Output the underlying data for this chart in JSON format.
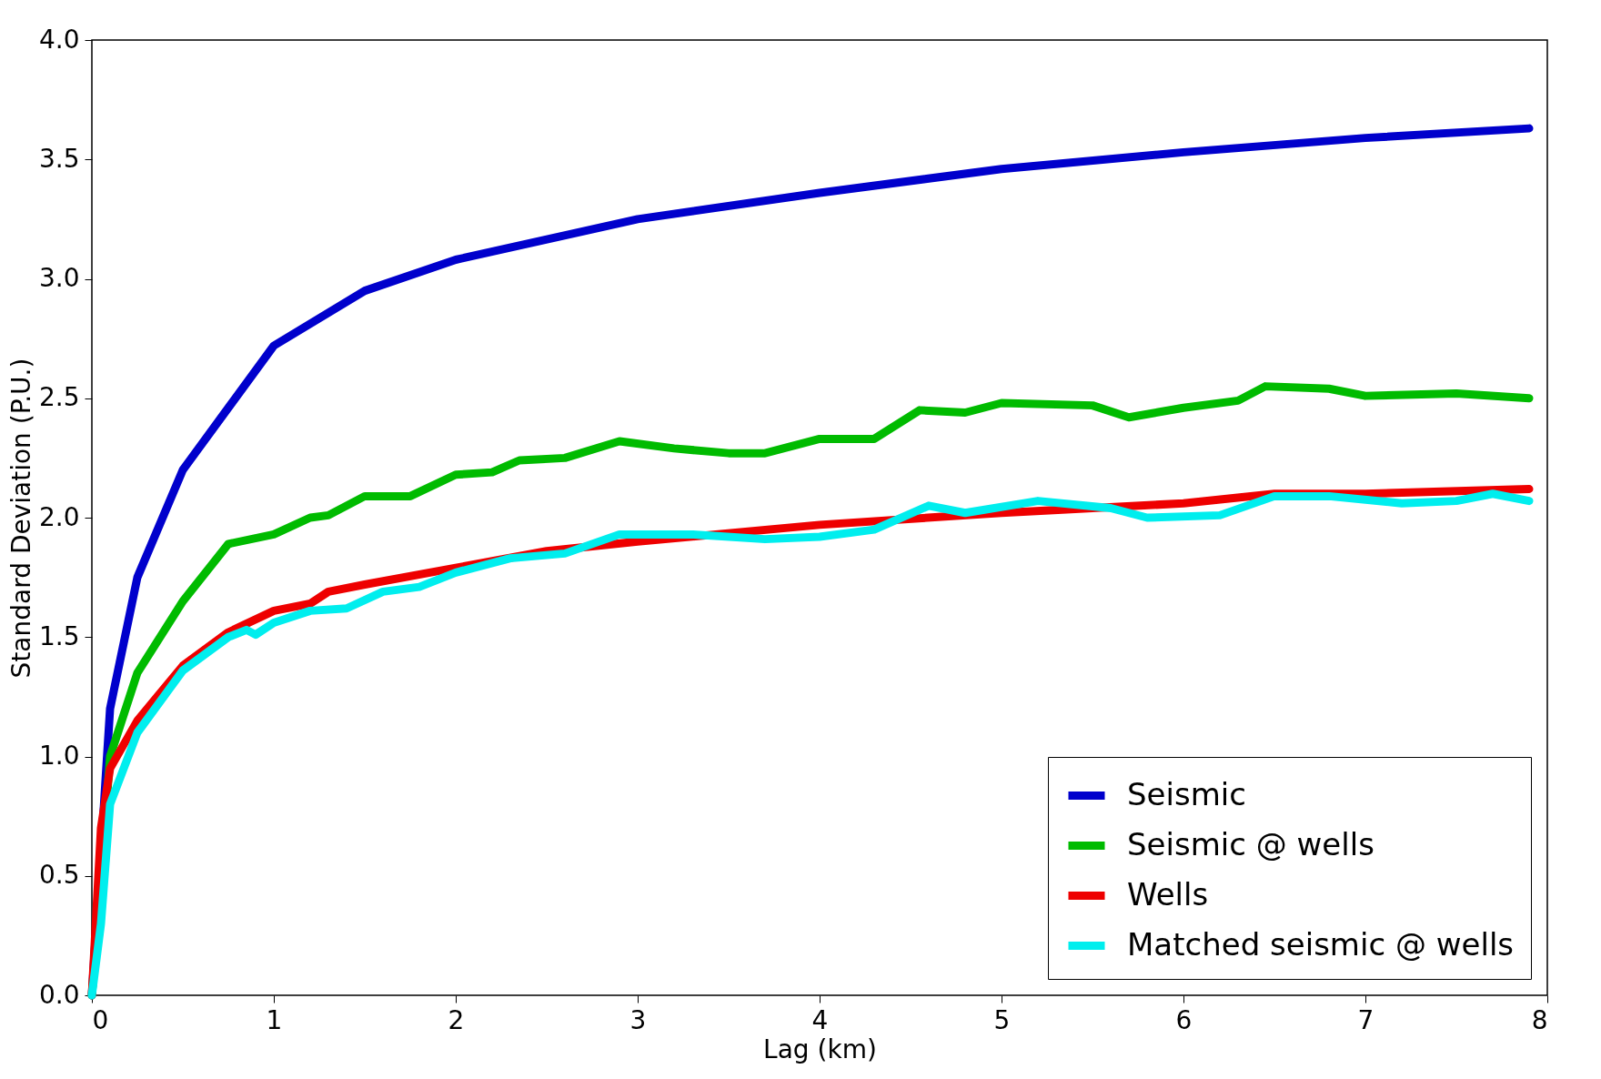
{
  "chart_data": {
    "type": "line",
    "xlabel": "Lag (km)",
    "ylabel": "Standard Deviation (P.U.)",
    "xlim": [
      0,
      8
    ],
    "xticks": [
      0,
      1,
      2,
      3,
      4,
      5,
      6,
      7,
      8
    ],
    "ylim": [
      0,
      4
    ],
    "yticks": [
      {
        "value": 0,
        "label": "0.0"
      },
      {
        "value": 0.5,
        "label": "0.5"
      },
      {
        "value": 1,
        "label": "1.0"
      },
      {
        "value": 1.5,
        "label": "1.5"
      },
      {
        "value": 2,
        "label": "2.0"
      },
      {
        "value": 2.5,
        "label": "2.5"
      },
      {
        "value": 3,
        "label": "3.0"
      },
      {
        "value": 3.5,
        "label": "3.5"
      },
      {
        "value": 4,
        "label": "4.0"
      }
    ],
    "grid": false,
    "legend": "bottom right",
    "line_style": "solid",
    "marker": "none",
    "series": [
      {
        "name": "Seismic",
        "color": "#0000cc",
        "x": [
          0,
          0.1,
          0.25,
          0.5,
          0.75,
          1,
          1.5,
          2,
          3,
          4,
          5,
          6,
          7,
          7.9
        ],
        "values": [
          0,
          1.2,
          1.75,
          2.2,
          2.46,
          2.72,
          2.95,
          3.08,
          3.25,
          3.36,
          3.46,
          3.53,
          3.59,
          3.63
        ]
      },
      {
        "name": "Seismic @ wells",
        "color": "#00bb00",
        "x": [
          0,
          0.1,
          0.25,
          0.5,
          0.75,
          1,
          1.2,
          1.3,
          1.5,
          1.75,
          2,
          2.2,
          2.35,
          2.6,
          2.9,
          3.2,
          3.5,
          3.7,
          4,
          4.3,
          4.55,
          4.8,
          5,
          5.5,
          5.7,
          6,
          6.3,
          6.45,
          6.8,
          7,
          7.5,
          7.9
        ],
        "values": [
          0,
          1,
          1.35,
          1.65,
          1.89,
          1.93,
          2,
          2.01,
          2.09,
          2.09,
          2.18,
          2.19,
          2.24,
          2.25,
          2.32,
          2.29,
          2.27,
          2.27,
          2.33,
          2.33,
          2.45,
          2.44,
          2.48,
          2.47,
          2.42,
          2.46,
          2.49,
          2.55,
          2.54,
          2.51,
          2.52,
          2.5
        ]
      },
      {
        "name": "Wells",
        "color": "#ee0000",
        "x": [
          0,
          0.05,
          0.1,
          0.25,
          0.5,
          0.75,
          1,
          1.2,
          1.3,
          1.5,
          2,
          2.5,
          3,
          4,
          5,
          5.5,
          6,
          6.5,
          7,
          7.9
        ],
        "values": [
          0,
          0.7,
          0.95,
          1.15,
          1.38,
          1.52,
          1.61,
          1.64,
          1.69,
          1.72,
          1.79,
          1.86,
          1.9,
          1.97,
          2.02,
          2.04,
          2.06,
          2.1,
          2.1,
          2.12
        ]
      },
      {
        "name": "Matched seismic @ wells",
        "color": "#00eeee",
        "x": [
          0,
          0.05,
          0.1,
          0.25,
          0.5,
          0.75,
          0.85,
          0.9,
          1,
          1.2,
          1.4,
          1.6,
          1.8,
          2,
          2.3,
          2.6,
          2.9,
          3.3,
          3.7,
          4,
          4.3,
          4.6,
          4.8,
          5.2,
          5.6,
          5.8,
          6.2,
          6.5,
          6.8,
          7.2,
          7.5,
          7.7,
          7.9
        ],
        "values": [
          0,
          0.3,
          0.8,
          1.1,
          1.36,
          1.5,
          1.53,
          1.51,
          1.56,
          1.61,
          1.62,
          1.69,
          1.71,
          1.77,
          1.83,
          1.85,
          1.93,
          1.93,
          1.91,
          1.92,
          1.95,
          2.05,
          2.02,
          2.07,
          2.04,
          2,
          2.01,
          2.09,
          2.09,
          2.06,
          2.07,
          2.1,
          2.07
        ]
      }
    ]
  }
}
